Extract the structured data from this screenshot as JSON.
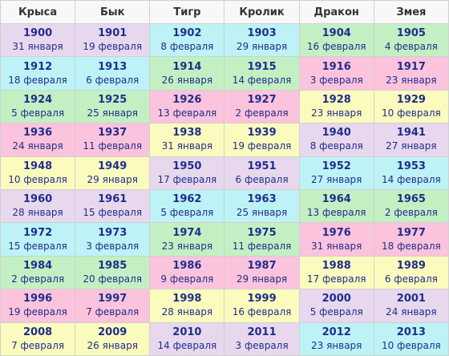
{
  "colors": {
    "lavender": "#e8d8ee",
    "cyan": "#bdf2f7",
    "green": "#c3f0c3",
    "pink": "#fcc3dc",
    "yellow": "#fbfbbe",
    "text": "#1f2e8c"
  },
  "headers": [
    "Крыса",
    "Бык",
    "Тигр",
    "Кролик",
    "Дракон",
    "Змея"
  ],
  "rows": [
    [
      {
        "year": "1900",
        "date": "31 января",
        "color": "lavender"
      },
      {
        "year": "1901",
        "date": "19 февраля",
        "color": "lavender"
      },
      {
        "year": "1902",
        "date": "8 февраля",
        "color": "cyan"
      },
      {
        "year": "1903",
        "date": "29 января",
        "color": "cyan"
      },
      {
        "year": "1904",
        "date": "16 февраля",
        "color": "green"
      },
      {
        "year": "1905",
        "date": "4 февраля",
        "color": "green"
      }
    ],
    [
      {
        "year": "1912",
        "date": "18 февраля",
        "color": "cyan"
      },
      {
        "year": "1913",
        "date": "6 февраля",
        "color": "cyan"
      },
      {
        "year": "1914",
        "date": "26 января",
        "color": "green"
      },
      {
        "year": "1915",
        "date": "14 февраля",
        "color": "green"
      },
      {
        "year": "1916",
        "date": "3 февраля",
        "color": "pink"
      },
      {
        "year": "1917",
        "date": "23 января",
        "color": "pink"
      }
    ],
    [
      {
        "year": "1924",
        "date": "5 февраля",
        "color": "green"
      },
      {
        "year": "1925",
        "date": "25 января",
        "color": "green"
      },
      {
        "year": "1926",
        "date": "13 февраля",
        "color": "pink"
      },
      {
        "year": "1927",
        "date": "2 февраля",
        "color": "pink"
      },
      {
        "year": "1928",
        "date": "23 января",
        "color": "yellow"
      },
      {
        "year": "1929",
        "date": "10 февраля",
        "color": "yellow"
      }
    ],
    [
      {
        "year": "1936",
        "date": "24 января",
        "color": "pink"
      },
      {
        "year": "1937",
        "date": "11 февраля",
        "color": "pink"
      },
      {
        "year": "1938",
        "date": "31 января",
        "color": "yellow"
      },
      {
        "year": "1939",
        "date": "19 февраля",
        "color": "yellow"
      },
      {
        "year": "1940",
        "date": "8 февраля",
        "color": "lavender"
      },
      {
        "year": "1941",
        "date": "27 января",
        "color": "lavender"
      }
    ],
    [
      {
        "year": "1948",
        "date": "10 февраля",
        "color": "yellow"
      },
      {
        "year": "1949",
        "date": "29 января",
        "color": "yellow"
      },
      {
        "year": "1950",
        "date": "17 февраля",
        "color": "lavender"
      },
      {
        "year": "1951",
        "date": "6 февраля",
        "color": "lavender"
      },
      {
        "year": "1952",
        "date": "27 января",
        "color": "cyan"
      },
      {
        "year": "1953",
        "date": "14 февраля",
        "color": "cyan"
      }
    ],
    [
      {
        "year": "1960",
        "date": "28 января",
        "color": "lavender"
      },
      {
        "year": "1961",
        "date": "15 февраля",
        "color": "lavender"
      },
      {
        "year": "1962",
        "date": "5 февраля",
        "color": "cyan"
      },
      {
        "year": "1963",
        "date": "25 января",
        "color": "cyan"
      },
      {
        "year": "1964",
        "date": "13 февраля",
        "color": "green"
      },
      {
        "year": "1965",
        "date": "2 февраля",
        "color": "green"
      }
    ],
    [
      {
        "year": "1972",
        "date": "15 февраля",
        "color": "cyan"
      },
      {
        "year": "1973",
        "date": "3 февраля",
        "color": "cyan"
      },
      {
        "year": "1974",
        "date": "23 января",
        "color": "green"
      },
      {
        "year": "1975",
        "date": "11 февраля",
        "color": "green"
      },
      {
        "year": "1976",
        "date": "31 января",
        "color": "pink"
      },
      {
        "year": "1977",
        "date": "18 февраля",
        "color": "pink"
      }
    ],
    [
      {
        "year": "1984",
        "date": "2 февраля",
        "color": "green"
      },
      {
        "year": "1985",
        "date": "20 февраля",
        "color": "green"
      },
      {
        "year": "1986",
        "date": "9 февраля",
        "color": "pink"
      },
      {
        "year": "1987",
        "date": "29 января",
        "color": "pink"
      },
      {
        "year": "1988",
        "date": "17 февраля",
        "color": "yellow"
      },
      {
        "year": "1989",
        "date": "6 февраля",
        "color": "yellow"
      }
    ],
    [
      {
        "year": "1996",
        "date": "19 февраля",
        "color": "pink"
      },
      {
        "year": "1997",
        "date": "7 февраля",
        "color": "pink"
      },
      {
        "year": "1998",
        "date": "28 января",
        "color": "yellow"
      },
      {
        "year": "1999",
        "date": "16 февраля",
        "color": "yellow"
      },
      {
        "year": "2000",
        "date": "5 февраля",
        "color": "lavender"
      },
      {
        "year": "2001",
        "date": "24 января",
        "color": "lavender"
      }
    ],
    [
      {
        "year": "2008",
        "date": "7 февраля",
        "color": "yellow"
      },
      {
        "year": "2009",
        "date": "26 января",
        "color": "yellow"
      },
      {
        "year": "2010",
        "date": "14 февраля",
        "color": "lavender"
      },
      {
        "year": "2011",
        "date": "3 февраля",
        "color": "lavender"
      },
      {
        "year": "2012",
        "date": "23 января",
        "color": "cyan"
      },
      {
        "year": "2013",
        "date": "10 февраля",
        "color": "cyan"
      }
    ]
  ]
}
